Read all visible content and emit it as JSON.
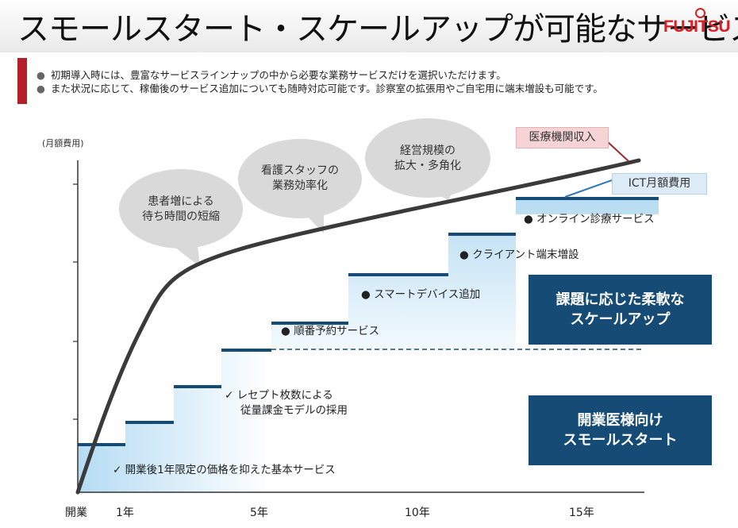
{
  "title": "スモールスタート・スケールアップが可能なサービス",
  "logo": "FUJITSU",
  "bullets": [
    "初期導入時には、豊富なサービスラインナップの中から必要な業務サービスだけを選択いただけます。",
    "また状況に応じて、稼働後のサービス追加についても随時対応可能です。診察室の拡張用やご自宅用に端末増設も可能です。"
  ],
  "y_axis_label": "(月額費用)",
  "x_ticks": [
    "開業",
    "1年",
    "5年",
    "10年",
    "15年"
  ],
  "bubbles": [
    [
      "患者増による",
      "待ち時間の短縮"
    ],
    [
      "看護スタッフの",
      "業務効率化"
    ],
    [
      "経営規模の",
      "拡大・多角化"
    ]
  ],
  "steps": {
    "base": "✓  開業後1年限定の価格を抑えた基本サービス",
    "receipt": [
      "✓  レセプト枚数による",
      "従量課金モデルの採用"
    ],
    "reservation": "● 順番予約サービス",
    "smart_device": "● スマートデバイス追加",
    "client": "● クライアント端末増設",
    "online": "● オンライン診療サービス"
  },
  "callouts": {
    "revenue": "医療機関収入",
    "ict": "ICT月額費用"
  },
  "boxes": {
    "scaleup": [
      "課題に応じた柔軟な",
      "スケールアップ"
    ],
    "smallstart": [
      "開業医様向け",
      "スモールスタート"
    ]
  },
  "colors": {
    "accent_red": "#d61f26",
    "step_blue": "#154b75",
    "box_blue": "#154b75",
    "curve": "#3a3a3a"
  }
}
